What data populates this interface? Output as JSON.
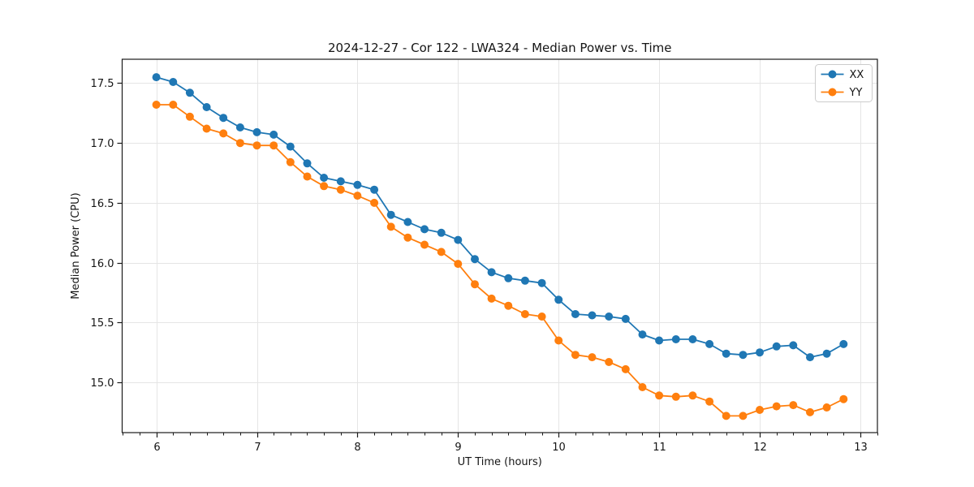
{
  "chart_data": {
    "type": "line",
    "title": "2024-12-27 - Cor 122 - LWA324 - Median Power vs. Time",
    "xlabel": "UT Time (hours)",
    "ylabel": "Median Power (CPU)",
    "xlim": [
      5.66,
      13.17
    ],
    "ylim": [
      14.58,
      17.7
    ],
    "x_major_ticks": [
      6,
      7,
      8,
      9,
      10,
      11,
      12,
      13
    ],
    "x_minor_tick_step": 0.166667,
    "y_ticks": [
      "15.0",
      "15.5",
      "16.0",
      "16.5",
      "17.0",
      "17.5"
    ],
    "grid": "major-both",
    "legend_position": "upper right",
    "background_color": "#ffffff",
    "grid_color": "#e5e5e5",
    "spine_color": "#1a1a1a",
    "x": [
      6.0,
      6.1667,
      6.3333,
      6.5,
      6.6667,
      6.8333,
      7.0,
      7.1667,
      7.3333,
      7.5,
      7.6667,
      7.8333,
      8.0,
      8.1667,
      8.3333,
      8.5,
      8.6667,
      8.8333,
      9.0,
      9.1667,
      9.3333,
      9.5,
      9.6667,
      9.8333,
      10.0,
      10.1667,
      10.3333,
      10.5,
      10.6667,
      10.8333,
      11.0,
      11.1667,
      11.3333,
      11.5,
      11.6667,
      11.8333,
      12.0,
      12.1667,
      12.3333,
      12.5,
      12.6667,
      12.8333
    ],
    "series": [
      {
        "name": "XX",
        "color": "#1f77b4",
        "marker": "o",
        "values": [
          17.55,
          17.51,
          17.42,
          17.3,
          17.21,
          17.13,
          17.09,
          17.07,
          16.97,
          16.83,
          16.71,
          16.68,
          16.65,
          16.61,
          16.4,
          16.34,
          16.28,
          16.25,
          16.19,
          16.03,
          15.92,
          15.87,
          15.85,
          15.83,
          15.69,
          15.57,
          15.56,
          15.55,
          15.53,
          15.4,
          15.35,
          15.36,
          15.36,
          15.32,
          15.24,
          15.23,
          15.25,
          15.3,
          15.31,
          15.21,
          15.24,
          15.32
        ]
      },
      {
        "name": "YY",
        "color": "#ff7f0e",
        "marker": "o",
        "values": [
          17.32,
          17.32,
          17.22,
          17.12,
          17.08,
          17.0,
          16.98,
          16.98,
          16.84,
          16.72,
          16.64,
          16.61,
          16.56,
          16.5,
          16.3,
          16.21,
          16.15,
          16.09,
          15.99,
          15.82,
          15.7,
          15.64,
          15.57,
          15.55,
          15.35,
          15.23,
          15.21,
          15.17,
          15.11,
          14.96,
          14.89,
          14.88,
          14.89,
          14.84,
          14.72,
          14.72,
          14.77,
          14.8,
          14.81,
          14.75,
          14.79,
          14.86
        ]
      }
    ]
  }
}
